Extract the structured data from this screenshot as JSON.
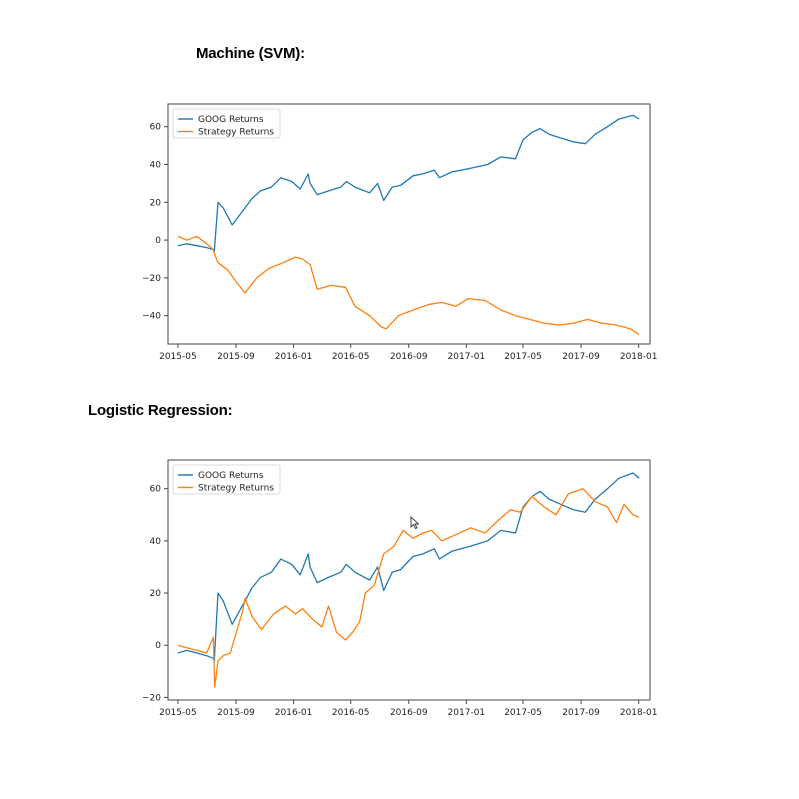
{
  "document": {
    "heading_svm": "Machine (SVM):",
    "heading_logreg": "Logistic Regression:"
  },
  "colors": {
    "goog": "#1f77b4",
    "strategy": "#ff7f0e"
  },
  "chart_data": [
    {
      "type": "line",
      "title": "",
      "xlabel": "",
      "ylabel": "",
      "x_ticks": [
        "2015-05",
        "2015-09",
        "2016-01",
        "2016-05",
        "2016-09",
        "2017-01",
        "2017-05",
        "2017-09",
        "2018-01"
      ],
      "xlim": [
        "2015-04-10",
        "2018-01-25"
      ],
      "y_ticks": [
        -40,
        -20,
        0,
        20,
        40,
        60
      ],
      "ylim": [
        -55,
        72
      ],
      "grid": false,
      "legend": "top-left",
      "series": [
        {
          "name": "GOOG Returns",
          "color": "#1f77b4",
          "x": [
            "2015-05-01",
            "2015-05-20",
            "2015-06-10",
            "2015-07-01",
            "2015-07-15",
            "2015-07-17",
            "2015-07-25",
            "2015-08-05",
            "2015-08-24",
            "2015-09-05",
            "2015-09-20",
            "2015-10-05",
            "2015-10-23",
            "2015-11-15",
            "2015-12-05",
            "2015-12-28",
            "2016-01-15",
            "2016-02-01",
            "2016-02-05",
            "2016-02-20",
            "2016-03-15",
            "2016-04-10",
            "2016-04-22",
            "2016-05-10",
            "2016-06-10",
            "2016-06-27",
            "2016-07-10",
            "2016-07-28",
            "2016-08-15",
            "2016-09-10",
            "2016-10-01",
            "2016-10-25",
            "2016-11-05",
            "2016-12-01",
            "2017-01-10",
            "2017-02-15",
            "2017-03-15",
            "2017-04-15",
            "2017-05-01",
            "2017-05-20",
            "2017-06-06",
            "2017-06-25",
            "2017-07-20",
            "2017-08-15",
            "2017-09-10",
            "2017-10-01",
            "2017-10-27",
            "2017-11-20",
            "2017-12-20",
            "2018-01-02"
          ],
          "y": [
            -3,
            -2,
            -3,
            -4,
            -5,
            -6,
            20,
            17,
            8,
            12,
            17,
            22,
            26,
            28,
            33,
            31,
            27,
            35,
            30,
            24,
            26,
            28,
            31,
            28,
            25,
            30,
            21,
            28,
            29,
            34,
            35,
            37,
            33,
            36,
            38,
            40,
            44,
            43,
            53,
            57,
            59,
            56,
            54,
            52,
            51,
            56,
            60,
            64,
            66,
            64
          ]
        },
        {
          "name": "Strategy Returns",
          "color": "#ff7f0e",
          "x": [
            "2015-05-01",
            "2015-05-20",
            "2015-06-10",
            "2015-07-01",
            "2015-07-15",
            "2015-07-17",
            "2015-07-25",
            "2015-08-15",
            "2015-09-01",
            "2015-09-20",
            "2015-10-15",
            "2015-11-10",
            "2015-12-10",
            "2016-01-05",
            "2016-01-20",
            "2016-02-05",
            "2016-02-20",
            "2016-03-20",
            "2016-04-20",
            "2016-05-10",
            "2016-06-10",
            "2016-07-05",
            "2016-07-15",
            "2016-08-10",
            "2016-09-10",
            "2016-10-15",
            "2016-11-10",
            "2016-12-10",
            "2017-01-05",
            "2017-02-10",
            "2017-03-15",
            "2017-04-15",
            "2017-05-15",
            "2017-06-15",
            "2017-07-15",
            "2017-08-15",
            "2017-09-15",
            "2017-10-15",
            "2017-11-15",
            "2017-12-15",
            "2018-01-02"
          ],
          "y": [
            2,
            0,
            2,
            -2,
            -5,
            -7,
            -12,
            -16,
            -22,
            -28,
            -20,
            -15,
            -12,
            -9,
            -10,
            -13,
            -26,
            -24,
            -25,
            -35,
            -40,
            -46,
            -47,
            -40,
            -37,
            -34,
            -33,
            -35,
            -31,
            -32,
            -37,
            -40,
            -42,
            -44,
            -45,
            -44,
            -42,
            -44,
            -45,
            -47,
            -50
          ]
        }
      ]
    },
    {
      "type": "line",
      "title": "",
      "xlabel": "",
      "ylabel": "",
      "x_ticks": [
        "2015-05",
        "2015-09",
        "2016-01",
        "2016-05",
        "2016-09",
        "2017-01",
        "2017-05",
        "2017-09",
        "2018-01"
      ],
      "xlim": [
        "2015-04-10",
        "2018-01-25"
      ],
      "y_ticks": [
        -20,
        0,
        20,
        40,
        60
      ],
      "ylim": [
        -21,
        71
      ],
      "grid": false,
      "legend": "top-left",
      "series": [
        {
          "name": "GOOG Returns",
          "color": "#1f77b4",
          "x": [
            "2015-05-01",
            "2015-05-20",
            "2015-06-10",
            "2015-07-01",
            "2015-07-15",
            "2015-07-17",
            "2015-07-25",
            "2015-08-05",
            "2015-08-24",
            "2015-09-05",
            "2015-09-20",
            "2015-10-05",
            "2015-10-23",
            "2015-11-15",
            "2015-12-05",
            "2015-12-28",
            "2016-01-15",
            "2016-02-01",
            "2016-02-05",
            "2016-02-20",
            "2016-03-15",
            "2016-04-10",
            "2016-04-22",
            "2016-05-10",
            "2016-06-10",
            "2016-06-27",
            "2016-07-10",
            "2016-07-28",
            "2016-08-15",
            "2016-09-10",
            "2016-10-01",
            "2016-10-25",
            "2016-11-05",
            "2016-12-01",
            "2017-01-10",
            "2017-02-15",
            "2017-03-15",
            "2017-04-15",
            "2017-05-01",
            "2017-05-20",
            "2017-06-06",
            "2017-06-25",
            "2017-07-20",
            "2017-08-15",
            "2017-09-10",
            "2017-10-01",
            "2017-10-27",
            "2017-11-20",
            "2017-12-20",
            "2018-01-02"
          ],
          "y": [
            -3,
            -2,
            -3,
            -4,
            -5,
            -6,
            20,
            17,
            8,
            12,
            17,
            22,
            26,
            28,
            33,
            31,
            27,
            35,
            30,
            24,
            26,
            28,
            31,
            28,
            25,
            30,
            21,
            28,
            29,
            34,
            35,
            37,
            33,
            36,
            38,
            40,
            44,
            43,
            53,
            57,
            59,
            56,
            54,
            52,
            51,
            56,
            60,
            64,
            66,
            64
          ]
        },
        {
          "name": "Strategy Returns",
          "color": "#ff7f0e",
          "x": [
            "2015-05-01",
            "2015-05-20",
            "2015-06-10",
            "2015-07-01",
            "2015-07-15",
            "2015-07-18",
            "2015-07-25",
            "2015-08-05",
            "2015-08-20",
            "2015-09-05",
            "2015-09-15",
            "2015-09-20",
            "2015-10-05",
            "2015-10-25",
            "2015-11-20",
            "2015-12-15",
            "2016-01-05",
            "2016-01-20",
            "2016-02-10",
            "2016-03-01",
            "2016-03-15",
            "2016-04-01",
            "2016-04-20",
            "2016-05-05",
            "2016-05-20",
            "2016-06-01",
            "2016-06-20",
            "2016-07-10",
            "2016-08-01",
            "2016-08-20",
            "2016-09-10",
            "2016-10-01",
            "2016-10-20",
            "2016-11-10",
            "2016-12-05",
            "2017-01-10",
            "2017-02-10",
            "2017-03-10",
            "2017-04-05",
            "2017-04-25",
            "2017-05-20",
            "2017-06-15",
            "2017-07-10",
            "2017-08-05",
            "2017-09-05",
            "2017-10-01",
            "2017-10-27",
            "2017-11-15",
            "2017-12-01",
            "2017-12-20",
            "2018-01-02"
          ],
          "y": [
            0,
            -1,
            -2,
            -3,
            3,
            -16,
            -6,
            -4,
            -3,
            7,
            13,
            18,
            11,
            6,
            12,
            15,
            12,
            14,
            10,
            7,
            15,
            5,
            2,
            5,
            9,
            20,
            23,
            35,
            38,
            44,
            41,
            43,
            44,
            40,
            42,
            45,
            43,
            48,
            52,
            51,
            57,
            53,
            50,
            58,
            60,
            55,
            53,
            47,
            54,
            50,
            49
          ]
        }
      ]
    }
  ]
}
